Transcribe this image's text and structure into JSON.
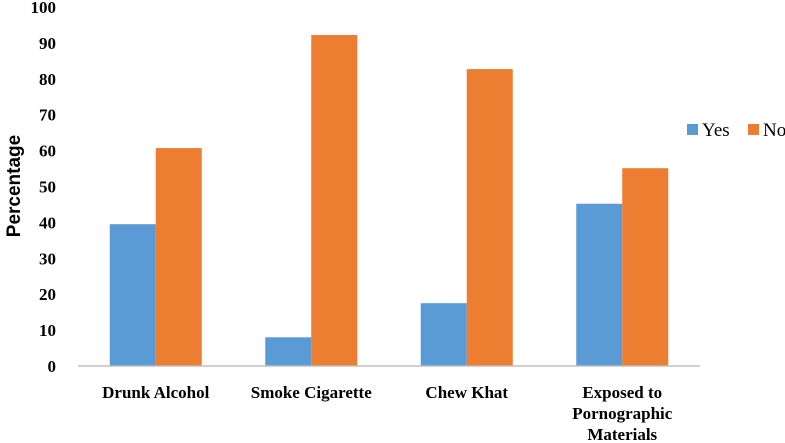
{
  "chart_data": {
    "type": "bar",
    "title": "",
    "xlabel": "",
    "ylabel": "Percentage",
    "ylim": [
      0,
      100
    ],
    "yticks": [
      0,
      10,
      20,
      30,
      40,
      50,
      60,
      70,
      80,
      90,
      100
    ],
    "grid": false,
    "legend_position": "right",
    "categories": [
      [
        "Drunk Alcohol"
      ],
      [
        "Smoke Cigarette"
      ],
      [
        "Chew Khat"
      ],
      [
        "Exposed to",
        "Pornographic",
        "Materials"
      ]
    ],
    "series": [
      {
        "name": "Yes",
        "color": "#5B9BD5",
        "values": [
          39.5,
          8,
          17.5,
          45.2
        ]
      },
      {
        "name": "No",
        "color": "#ED7D31",
        "values": [
          60.7,
          92.2,
          82.7,
          55.1
        ]
      }
    ]
  }
}
